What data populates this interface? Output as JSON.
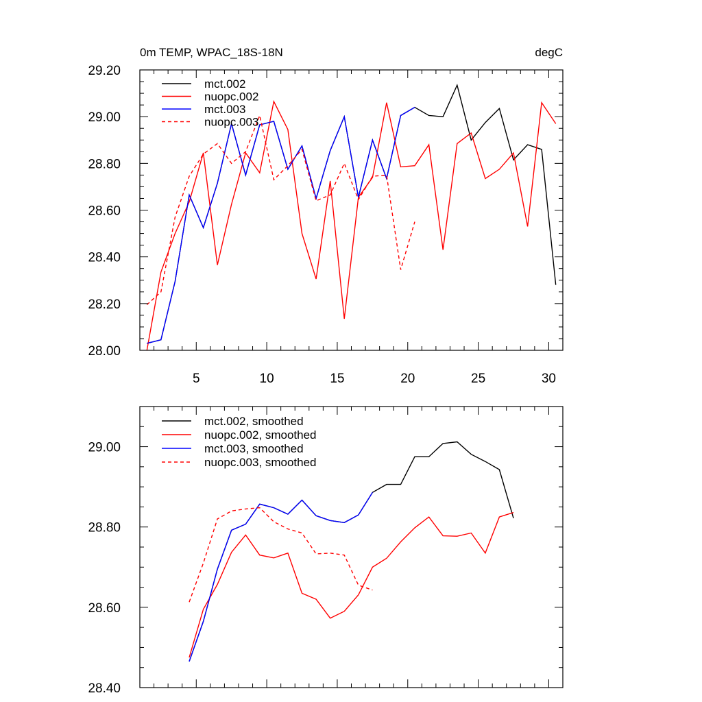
{
  "chart_data": [
    {
      "type": "line",
      "title": "0m TEMP, WPAC_18S-18N",
      "units": "degC",
      "xlabel": "",
      "ylabel": "",
      "xlim": [
        1,
        31
      ],
      "ylim": [
        28.0,
        29.2
      ],
      "xticks": [
        5,
        10,
        15,
        20,
        25,
        30
      ],
      "xtick_labels": [
        "5",
        "10",
        "15",
        "20",
        "25",
        "30"
      ],
      "yticks": [
        28.0,
        28.2,
        28.4,
        28.6,
        28.8,
        29.0,
        29.2
      ],
      "ytick_labels": [
        "28.00",
        "28.20",
        "28.40",
        "28.60",
        "28.80",
        "29.00",
        "29.20"
      ],
      "grid": false,
      "legend_position": "top-left",
      "series": [
        {
          "name": "mct.002",
          "color": "#000000",
          "dash": "solid",
          "x": [
            1.5,
            2.5,
            3.5,
            4.5,
            5.5,
            6.5,
            7.5,
            8.5,
            9.5,
            10.5,
            11.5,
            12.5,
            13.5,
            14.5,
            15.5,
            16.5,
            17.5,
            18.5,
            19.5,
            20.5,
            21.5,
            22.5,
            23.5,
            24.5,
            25.5,
            26.5,
            27.5,
            28.5,
            29.5,
            30.5
          ],
          "y": [
            28.03,
            28.045,
            28.295,
            28.665,
            28.525,
            28.715,
            28.97,
            28.75,
            28.965,
            28.98,
            28.775,
            28.875,
            28.65,
            28.855,
            29.0,
            28.655,
            28.9,
            28.735,
            29.005,
            29.04,
            29.005,
            29.0,
            29.135,
            28.9,
            28.975,
            29.035,
            28.815,
            28.88,
            28.86,
            28.28
          ]
        },
        {
          "name": "nuopc.002",
          "color": "#ff0000",
          "dash": "solid",
          "x": [
            1.5,
            2.5,
            3.5,
            4.5,
            5.5,
            6.5,
            7.5,
            8.5,
            9.5,
            10.5,
            11.5,
            12.5,
            13.5,
            14.5,
            15.5,
            16.5,
            17.5,
            18.5,
            19.5,
            20.5,
            21.5,
            22.5,
            23.5,
            24.5,
            25.5,
            26.5,
            27.5,
            28.5,
            29.5,
            30.5
          ],
          "y": [
            28.0,
            28.335,
            28.5,
            28.635,
            28.845,
            28.365,
            28.625,
            28.845,
            28.76,
            29.065,
            28.945,
            28.5,
            28.305,
            28.725,
            28.135,
            28.655,
            28.74,
            29.06,
            28.785,
            28.79,
            28.88,
            28.43,
            28.885,
            28.93,
            28.735,
            28.775,
            28.845,
            28.53,
            29.06,
            28.97
          ]
        },
        {
          "name": "mct.003",
          "color": "#0000ff",
          "dash": "solid",
          "x": [
            1.5,
            2.5,
            3.5,
            4.5,
            5.5,
            6.5,
            7.5,
            8.5,
            9.5,
            10.5,
            11.5,
            12.5,
            13.5,
            14.5,
            15.5,
            16.5,
            17.5,
            18.5,
            19.5,
            20.5
          ],
          "y": [
            28.03,
            28.045,
            28.295,
            28.665,
            28.525,
            28.715,
            28.97,
            28.75,
            28.965,
            28.98,
            28.775,
            28.875,
            28.65,
            28.855,
            29.0,
            28.655,
            28.9,
            28.735,
            29.005,
            29.04
          ]
        },
        {
          "name": "nuopc.003",
          "color": "#ff0000",
          "dash": "dashed",
          "x": [
            1.5,
            2.5,
            3.5,
            4.5,
            5.5,
            6.5,
            7.5,
            8.5,
            9.5,
            10.5,
            11.5,
            12.5,
            13.5,
            14.5,
            15.5,
            16.5,
            17.5,
            18.5,
            19.5,
            20.5
          ],
          "y": [
            28.195,
            28.25,
            28.57,
            28.745,
            28.84,
            28.885,
            28.8,
            28.85,
            29.005,
            28.73,
            28.79,
            28.86,
            28.64,
            28.665,
            28.8,
            28.645,
            28.745,
            28.75,
            28.345,
            28.55
          ]
        }
      ]
    },
    {
      "type": "line",
      "title": "",
      "xlabel": "",
      "ylabel": "",
      "xlim": [
        1,
        31
      ],
      "ylim": [
        28.4,
        29.1
      ],
      "xticks": [
        5,
        10,
        15,
        20,
        25,
        30
      ],
      "yticks": [
        28.4,
        28.6,
        28.8,
        29.0
      ],
      "ytick_labels": [
        "28.40",
        "28.60",
        "28.80",
        "29.00"
      ],
      "grid": false,
      "legend_position": "top-left",
      "series": [
        {
          "name": "mct.002, smoothed",
          "color": "#000000",
          "dash": "solid",
          "x": [
            4.5,
            5.5,
            6.5,
            7.5,
            8.5,
            9.5,
            10.5,
            11.5,
            12.5,
            13.5,
            14.5,
            15.5,
            16.5,
            17.5,
            18.5,
            19.5,
            20.5,
            21.5,
            22.5,
            23.5,
            24.5,
            25.5,
            26.5,
            27.5
          ],
          "y": [
            28.465,
            28.565,
            28.695,
            28.792,
            28.807,
            28.857,
            28.848,
            28.832,
            28.867,
            28.828,
            28.816,
            28.811,
            28.83,
            28.886,
            28.906,
            28.906,
            28.975,
            28.975,
            29.008,
            29.012,
            28.981,
            28.963,
            28.943,
            28.822
          ]
        },
        {
          "name": "nuopc.002, smoothed",
          "color": "#ff0000",
          "dash": "solid",
          "x": [
            4.5,
            5.5,
            6.5,
            7.5,
            8.5,
            9.5,
            10.5,
            11.5,
            12.5,
            13.5,
            14.5,
            15.5,
            16.5,
            17.5,
            18.5,
            19.5,
            20.5,
            21.5,
            22.5,
            23.5,
            24.5,
            25.5,
            26.5,
            27.5
          ],
          "y": [
            28.475,
            28.595,
            28.657,
            28.737,
            28.78,
            28.73,
            28.723,
            28.735,
            28.635,
            28.62,
            28.573,
            28.59,
            28.631,
            28.7,
            28.722,
            28.763,
            28.798,
            28.825,
            28.778,
            28.777,
            28.785,
            28.735,
            28.825,
            28.836
          ]
        },
        {
          "name": "mct.003, smoothed",
          "color": "#0000ff",
          "dash": "solid",
          "x": [
            4.5,
            5.5,
            6.5,
            7.5,
            8.5,
            9.5,
            10.5,
            11.5,
            12.5,
            13.5,
            14.5,
            15.5,
            16.5,
            17.5
          ],
          "y": [
            28.465,
            28.565,
            28.695,
            28.792,
            28.807,
            28.857,
            28.848,
            28.832,
            28.867,
            28.828,
            28.816,
            28.811,
            28.83,
            28.886
          ]
        },
        {
          "name": "nuopc.003, smoothed",
          "color": "#ff0000",
          "dash": "dashed",
          "x": [
            4.5,
            5.5,
            6.5,
            7.5,
            8.5,
            9.5,
            10.5,
            11.5,
            12.5,
            13.5,
            14.5,
            15.5,
            16.5,
            17.5
          ],
          "y": [
            28.613,
            28.71,
            28.82,
            28.84,
            28.845,
            28.848,
            28.813,
            28.795,
            28.785,
            28.733,
            28.735,
            28.73,
            28.655,
            28.643
          ]
        }
      ]
    }
  ]
}
